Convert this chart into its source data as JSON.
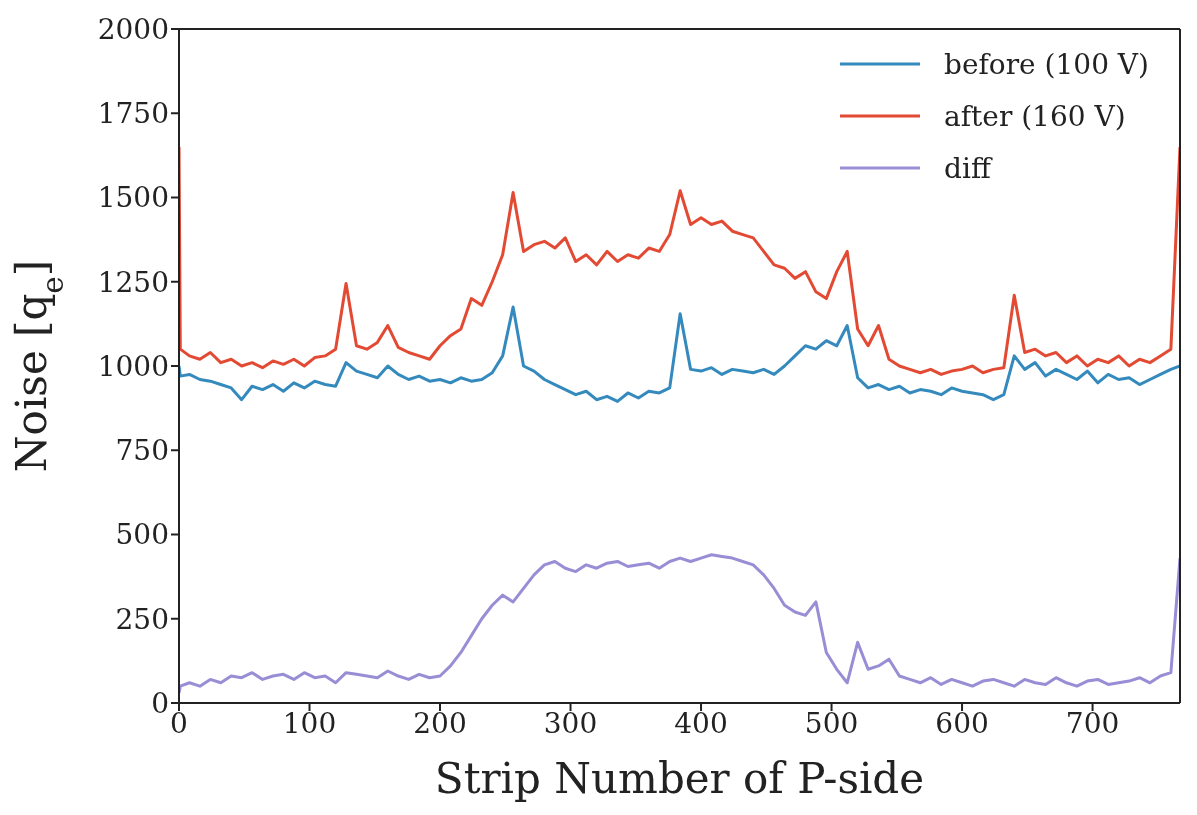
{
  "chart_data": {
    "type": "line",
    "xlabel": "Strip Number of P-side",
    "ylabel": "Noise [q$_{e}$]",
    "x": [
      0,
      1,
      8,
      16,
      24,
      32,
      40,
      48,
      56,
      64,
      72,
      80,
      88,
      96,
      104,
      112,
      120,
      128,
      136,
      144,
      152,
      160,
      168,
      176,
      184,
      192,
      200,
      208,
      216,
      224,
      232,
      240,
      248,
      256,
      264,
      272,
      280,
      288,
      296,
      304,
      312,
      320,
      328,
      336,
      344,
      352,
      360,
      368,
      376,
      384,
      392,
      400,
      408,
      416,
      424,
      432,
      440,
      448,
      456,
      464,
      472,
      480,
      488,
      496,
      504,
      512,
      520,
      528,
      536,
      544,
      552,
      560,
      568,
      576,
      584,
      592,
      600,
      608,
      616,
      624,
      632,
      640,
      648,
      656,
      664,
      672,
      680,
      688,
      696,
      704,
      712,
      720,
      728,
      736,
      744,
      752,
      760,
      767
    ],
    "series": [
      {
        "name": "before (100 V)",
        "color": "#348abd",
        "values": [
          1000,
          970,
          975,
          960,
          955,
          945,
          935,
          900,
          940,
          930,
          945,
          925,
          950,
          935,
          955,
          945,
          940,
          1010,
          985,
          975,
          965,
          1000,
          975,
          960,
          970,
          955,
          960,
          950,
          965,
          955,
          960,
          980,
          1030,
          1175,
          1000,
          985,
          960,
          945,
          930,
          915,
          925,
          900,
          910,
          895,
          920,
          905,
          925,
          920,
          935,
          1155,
          990,
          985,
          995,
          975,
          990,
          985,
          980,
          990,
          975,
          1000,
          1030,
          1060,
          1050,
          1075,
          1060,
          1120,
          965,
          935,
          945,
          930,
          940,
          920,
          930,
          925,
          915,
          935,
          925,
          920,
          915,
          900,
          915,
          1030,
          990,
          1010,
          970,
          990,
          975,
          960,
          985,
          950,
          975,
          960,
          965,
          945,
          960,
          975,
          990,
          1000
        ]
      },
      {
        "name": "after (160 V)",
        "color": "#e24a33",
        "values": [
          1650,
          1050,
          1030,
          1020,
          1040,
          1010,
          1020,
          1000,
          1010,
          995,
          1015,
          1005,
          1020,
          1000,
          1025,
          1030,
          1050,
          1245,
          1060,
          1050,
          1070,
          1120,
          1055,
          1040,
          1030,
          1020,
          1060,
          1090,
          1110,
          1200,
          1180,
          1250,
          1330,
          1515,
          1340,
          1360,
          1370,
          1350,
          1380,
          1310,
          1330,
          1300,
          1340,
          1310,
          1330,
          1320,
          1350,
          1340,
          1390,
          1520,
          1420,
          1440,
          1420,
          1430,
          1400,
          1390,
          1380,
          1340,
          1300,
          1290,
          1260,
          1280,
          1220,
          1200,
          1280,
          1340,
          1110,
          1060,
          1120,
          1020,
          1000,
          990,
          980,
          990,
          975,
          985,
          990,
          1000,
          980,
          990,
          995,
          1210,
          1040,
          1050,
          1030,
          1040,
          1010,
          1030,
          1000,
          1020,
          1010,
          1030,
          1000,
          1020,
          1010,
          1030,
          1050,
          1650
        ]
      },
      {
        "name": "diff",
        "color": "#988ed5",
        "values": [
          30,
          50,
          60,
          50,
          70,
          60,
          80,
          75,
          90,
          70,
          80,
          85,
          70,
          90,
          75,
          80,
          60,
          90,
          85,
          80,
          75,
          95,
          80,
          70,
          85,
          75,
          80,
          110,
          150,
          200,
          250,
          290,
          320,
          300,
          340,
          380,
          410,
          420,
          400,
          390,
          410,
          400,
          415,
          420,
          405,
          410,
          415,
          400,
          420,
          430,
          420,
          430,
          440,
          435,
          430,
          420,
          410,
          380,
          340,
          290,
          270,
          260,
          300,
          150,
          100,
          60,
          180,
          100,
          110,
          130,
          80,
          70,
          60,
          75,
          55,
          70,
          60,
          50,
          65,
          70,
          60,
          50,
          70,
          60,
          55,
          75,
          60,
          50,
          65,
          70,
          55,
          60,
          65,
          75,
          60,
          80,
          90,
          430
        ]
      }
    ],
    "xlim": [
      0,
      767
    ],
    "xticks": [
      0,
      100,
      200,
      300,
      400,
      500,
      600,
      700
    ],
    "ylim": [
      0,
      2000
    ],
    "yticks": [
      0,
      250,
      500,
      750,
      1000,
      1250,
      1500,
      1750,
      2000
    ],
    "grid": false,
    "legend": "top right",
    "marker": "none",
    "line_style": "solid"
  }
}
